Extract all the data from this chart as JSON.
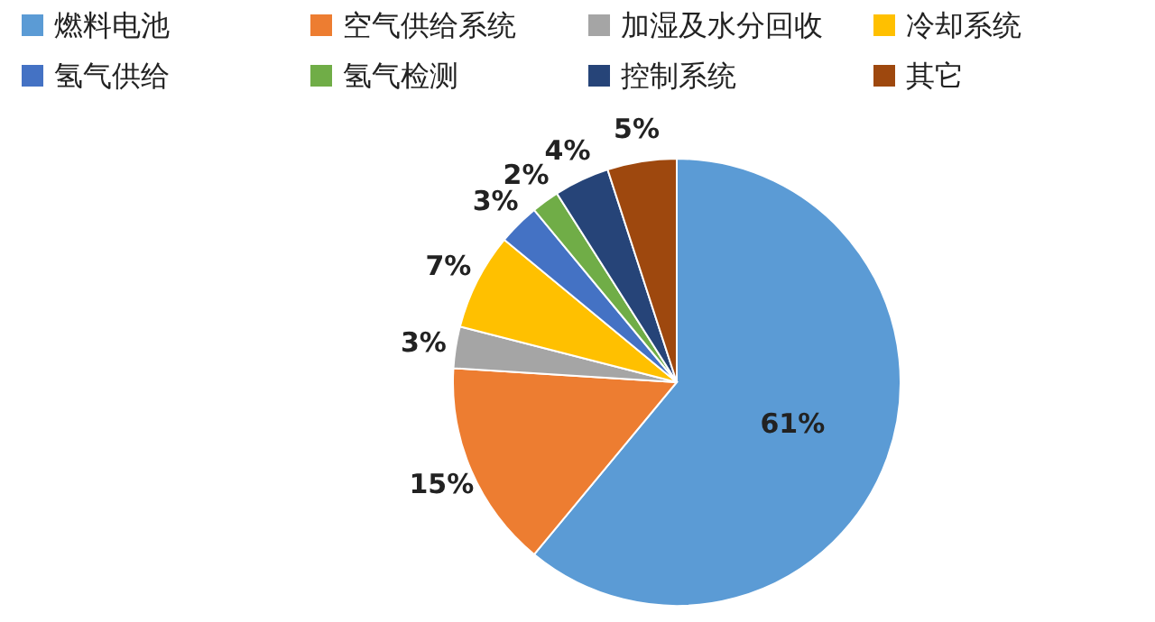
{
  "chart_data": {
    "type": "pie",
    "categories": [
      "燃料电池",
      "空气供给系统",
      "加湿及水分回收",
      "冷却系统",
      "氢气供给",
      "氢气检测",
      "控制系统",
      "其它"
    ],
    "values": [
      61,
      15,
      3,
      7,
      3,
      2,
      4,
      5
    ],
    "value_labels": [
      "61%",
      "15%",
      "3%",
      "7%",
      "3%",
      "2%",
      "4%",
      "5%"
    ],
    "colors": [
      "#5b9bd5",
      "#ed7d31",
      "#a5a5a5",
      "#ffc000",
      "#4472c4",
      "#70ad47",
      "#264478",
      "#9e480e"
    ],
    "legend": "top"
  }
}
